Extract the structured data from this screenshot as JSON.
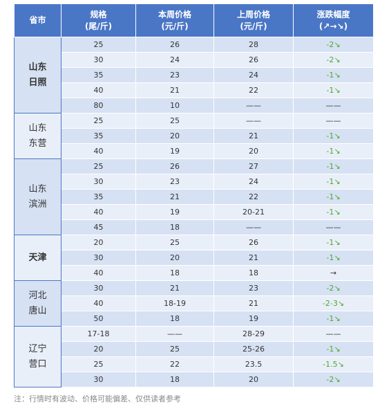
{
  "table": {
    "header": [
      [
        "省市"
      ],
      [
        "规格",
        "(尾/斤)"
      ],
      [
        "本周价格",
        "(元/斤)"
      ],
      [
        "上周价格",
        "(元/斤)"
      ],
      [
        "涨跌幅度",
        "(↗→↘)"
      ]
    ],
    "groups": [
      {
        "province": [
          "山东",
          "日照"
        ],
        "bold": true,
        "rows": [
          [
            "25",
            "26",
            "28",
            "-2↘"
          ],
          [
            "30",
            "24",
            "26",
            "-2↘"
          ],
          [
            "35",
            "23",
            "24",
            "-1↘"
          ],
          [
            "40",
            "21",
            "22",
            "-1↘"
          ],
          [
            "80",
            "10",
            "——",
            "——"
          ]
        ]
      },
      {
        "province": [
          "山东",
          "东营"
        ],
        "bold": false,
        "rows": [
          [
            "25",
            "25",
            "——",
            "——"
          ],
          [
            "35",
            "20",
            "21",
            "-1↘"
          ],
          [
            "40",
            "19",
            "20",
            "-1↘"
          ]
        ]
      },
      {
        "province": [
          "山东",
          "滨洲"
        ],
        "bold": false,
        "rows": [
          [
            "25",
            "26",
            "27",
            "-1↘"
          ],
          [
            "30",
            "23",
            "24",
            "-1↘"
          ],
          [
            "35",
            "21",
            "22",
            "-1↘"
          ],
          [
            "40",
            "19",
            "20-21",
            "-1↘"
          ],
          [
            "45",
            "18",
            "——",
            "——"
          ]
        ]
      },
      {
        "province": [
          "天津"
        ],
        "bold": true,
        "rows": [
          [
            "20",
            "25",
            "26",
            "-1↘"
          ],
          [
            "30",
            "20",
            "21",
            "-1↘"
          ],
          [
            "40",
            "18",
            "18",
            "→"
          ]
        ]
      },
      {
        "province": [
          "河北",
          "唐山"
        ],
        "bold": false,
        "rows": [
          [
            "30",
            "21",
            "23",
            "-2↘"
          ],
          [
            "40",
            "18-19",
            "21",
            "-2-3↘"
          ],
          [
            "50",
            "18",
            "19",
            "-1↘"
          ]
        ]
      },
      {
        "province": [
          "辽宁",
          "营口"
        ],
        "bold": false,
        "rows": [
          [
            "17-18",
            "——",
            "28-29",
            "——"
          ],
          [
            "20",
            "25",
            "25-26",
            "-1↘"
          ],
          [
            "25",
            "22",
            "23.5",
            "-1.5↘"
          ],
          [
            "30",
            "18",
            "20",
            "-2↘"
          ]
        ]
      }
    ]
  },
  "note": "注：行情时有波动、价格可能偏差、仅供读者参考"
}
